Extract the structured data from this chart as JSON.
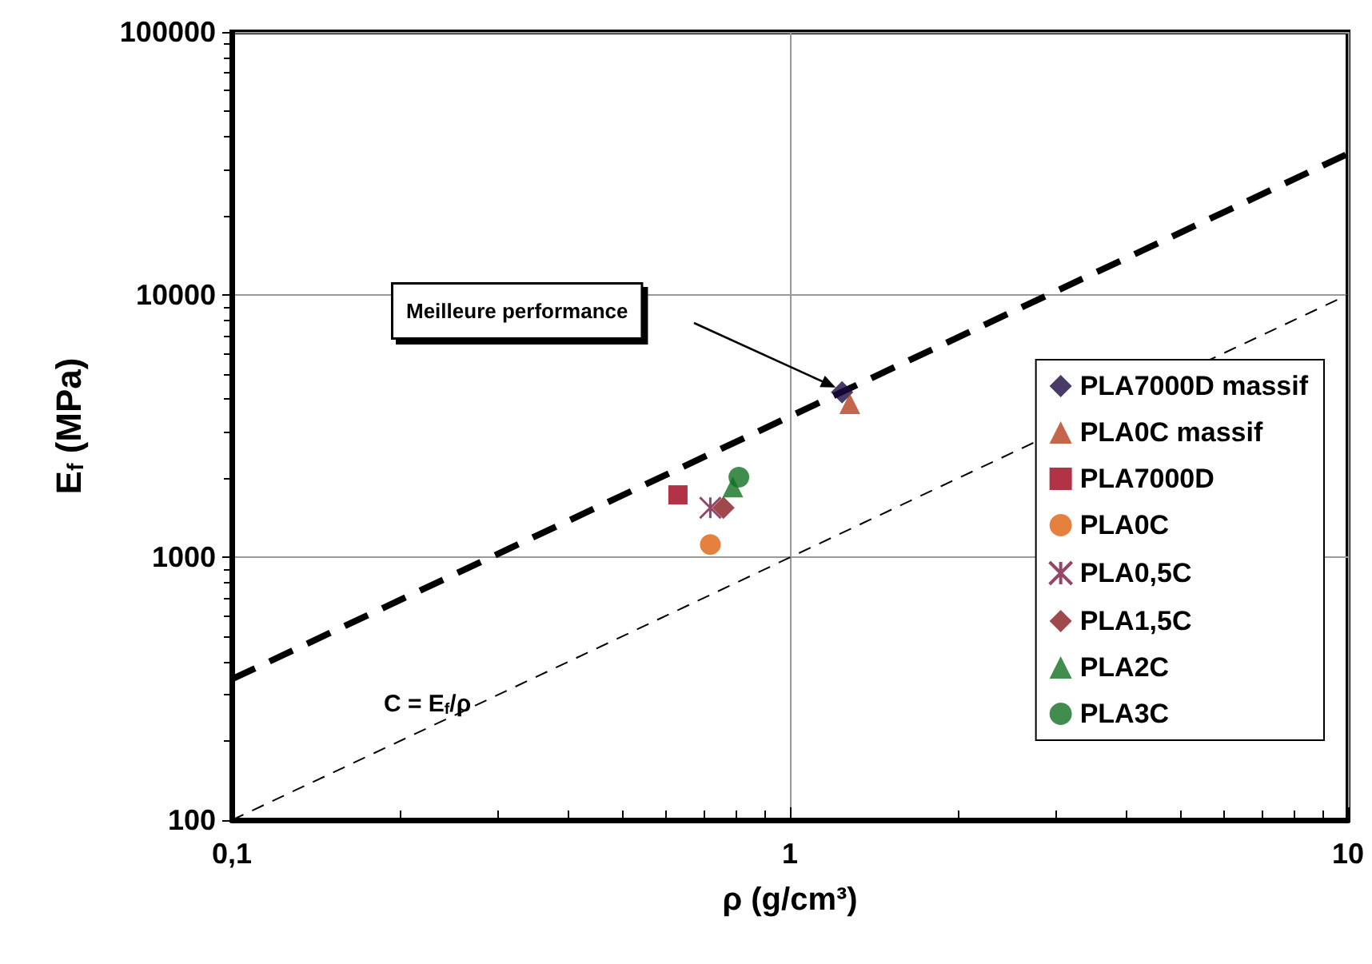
{
  "chart_data": {
    "type": "scatter",
    "xlabel": "ρ (g/cm³)",
    "ylabel": "E$_{f}$ (MPa)",
    "log": "xy",
    "grid": true,
    "legend": "right",
    "xlim": [
      0.1,
      10
    ],
    "xticks": [
      {
        "value": 0.1,
        "label": "0,1"
      },
      1,
      10
    ],
    "ylim": [
      100,
      100000
    ],
    "yticks": [
      100,
      1000,
      10000,
      100000
    ],
    "series": [
      {
        "name": "PLA7000D massif",
        "color": "#1a0a40",
        "marker": "diamond",
        "x": [
          1.24
        ],
        "values": [
          4250
        ]
      },
      {
        "name": "PLA0C massif",
        "color": "#b5401e",
        "marker": "triangle",
        "x": [
          1.28
        ],
        "values": [
          3850
        ]
      },
      {
        "name": "PLA7000D",
        "color": "#a00018",
        "marker": "square",
        "x": [
          0.63
        ],
        "values": [
          1730
        ]
      },
      {
        "name": "PLA0C",
        "color": "#e0600f",
        "marker": "circle",
        "x": [
          0.72
        ],
        "values": [
          1120
        ]
      },
      {
        "name": "PLA0,5C",
        "color": "#7a1840",
        "marker": "cross",
        "x": [
          0.72
        ],
        "values": [
          1545
        ]
      },
      {
        "name": "PLA1,5C",
        "color": "#8a1a20",
        "marker": "diamond",
        "x": [
          0.76
        ],
        "values": [
          1545
        ]
      },
      {
        "name": "PLA2C",
        "color": "#107020",
        "marker": "triangle",
        "x": [
          0.79
        ],
        "values": [
          1855
        ]
      },
      {
        "name": "PLA3C",
        "color": "#107020",
        "marker": "circle",
        "x": [
          0.81
        ],
        "values": [
          2020
        ]
      },
      {
        "type": "line",
        "color": "#000000",
        "line_style": "dashed",
        "marker": "none",
        "x": [
          0.1,
          10
        ],
        "values": [
          344,
          34400
        ]
      },
      {
        "type": "line",
        "color": "#000000",
        "line_style": "dashed",
        "marker": "none",
        "x": [
          0.1,
          10
        ],
        "values": [
          100,
          10000
        ]
      }
    ],
    "annotations": [
      "Meilleure performance",
      "C = E$_{f}$/ρ"
    ]
  }
}
